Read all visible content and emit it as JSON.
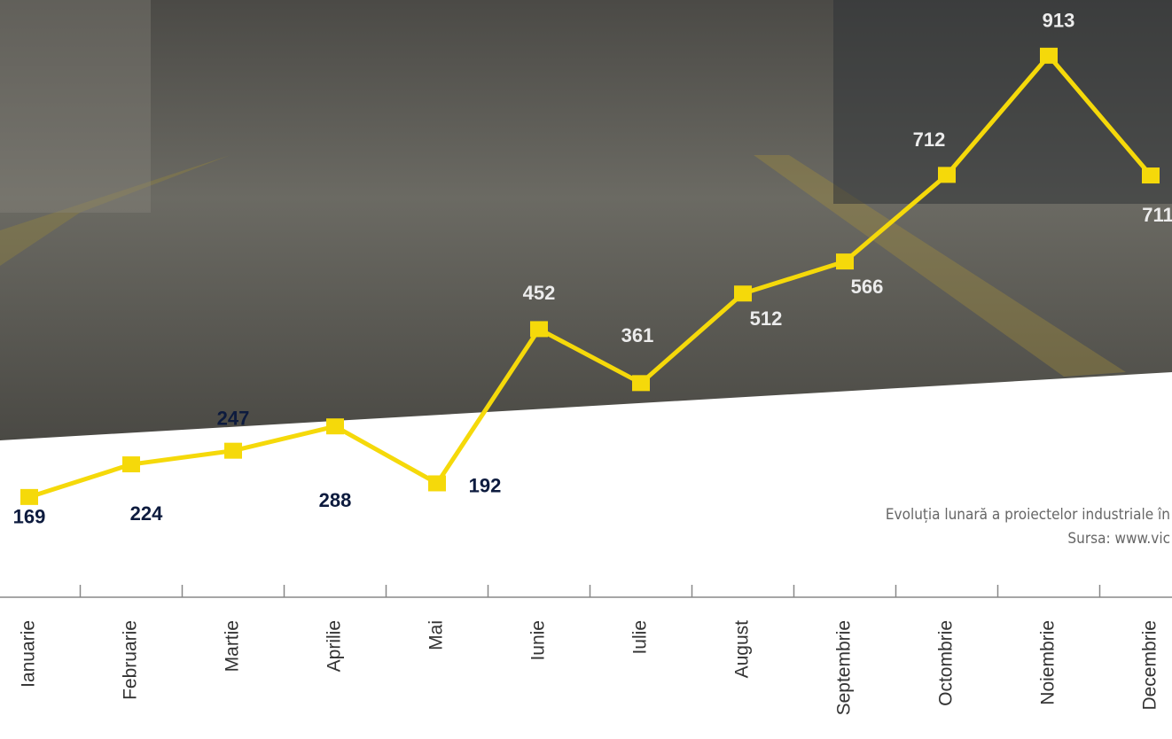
{
  "chart_data": {
    "type": "line",
    "categories": [
      "Ianuarie",
      "Februarie",
      "Martie",
      "Aprilie",
      "Mai",
      "Iunie",
      "Iulie",
      "August",
      "Septembrie",
      "Octombrie",
      "Noiembrie",
      "Decembrie"
    ],
    "values": [
      169,
      224,
      247,
      288,
      192,
      452,
      361,
      512,
      566,
      712,
      913,
      711
    ],
    "color": "#f5d90a",
    "caption": "Evoluția lunară a proiectelor industriale în",
    "source": "Sursa: www.vic"
  }
}
